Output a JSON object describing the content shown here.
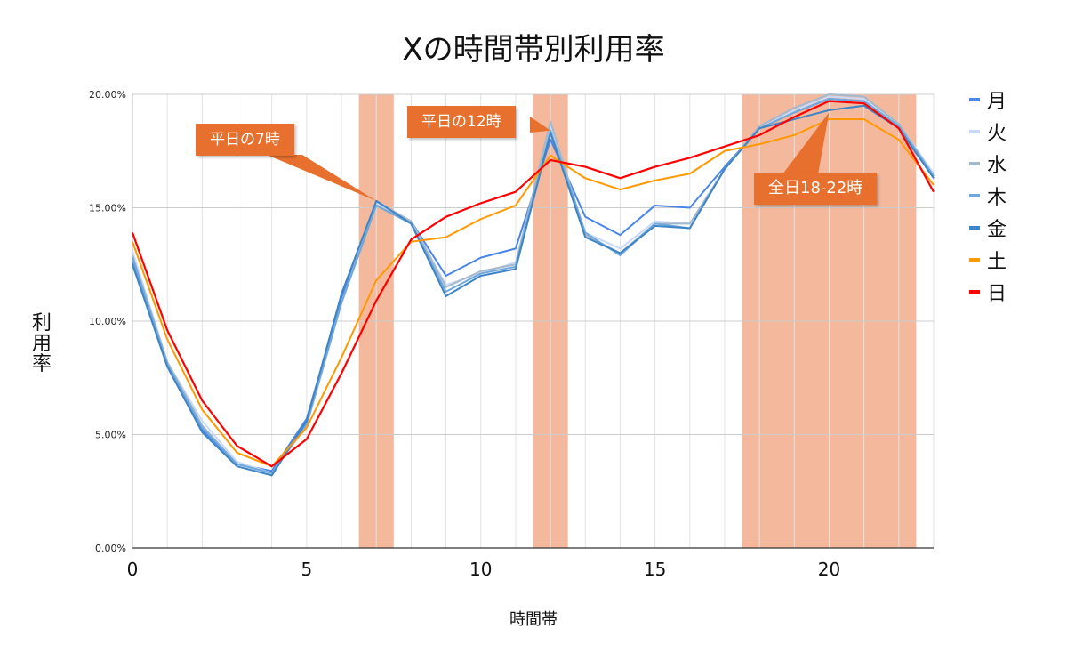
{
  "chart_data": {
    "type": "line",
    "title": "Xの時間帯別利用率",
    "xlabel": "時間帯",
    "ylabel": "利用率",
    "xlim": [
      0,
      23
    ],
    "ylim": [
      0,
      0.2
    ],
    "x_ticks": [
      "0",
      "5",
      "10",
      "15",
      "20"
    ],
    "y_ticks": [
      "0.00%",
      "5.00%",
      "10.00%",
      "15.00%",
      "20.00%"
    ],
    "x": [
      0,
      1,
      2,
      3,
      4,
      5,
      6,
      7,
      8,
      9,
      10,
      11,
      12,
      13,
      14,
      15,
      16,
      17,
      18,
      19,
      20,
      21,
      22,
      23
    ],
    "grid": true,
    "legend_position": "right",
    "series": [
      {
        "name": "月",
        "color": "#4a86e8",
        "values": [
          0.126,
          0.08,
          0.052,
          0.037,
          0.034,
          0.057,
          0.11,
          0.152,
          0.144,
          0.12,
          0.128,
          0.132,
          0.18,
          0.146,
          0.138,
          0.151,
          0.15,
          0.168,
          0.185,
          0.192,
          0.198,
          0.197,
          0.186,
          0.165
        ]
      },
      {
        "name": "火",
        "color": "#c9daf8",
        "values": [
          0.131,
          0.082,
          0.056,
          0.038,
          0.033,
          0.054,
          0.108,
          0.152,
          0.144,
          0.116,
          0.121,
          0.126,
          0.186,
          0.139,
          0.132,
          0.144,
          0.143,
          0.167,
          0.185,
          0.193,
          0.199,
          0.198,
          0.187,
          0.165
        ]
      },
      {
        "name": "水",
        "color": "#a4b8cb",
        "values": [
          0.129,
          0.082,
          0.054,
          0.037,
          0.033,
          0.054,
          0.108,
          0.153,
          0.144,
          0.115,
          0.122,
          0.125,
          0.188,
          0.138,
          0.13,
          0.143,
          0.143,
          0.167,
          0.186,
          0.194,
          0.2,
          0.199,
          0.187,
          0.164
        ]
      },
      {
        "name": "木",
        "color": "#6fa8dc",
        "values": [
          0.128,
          0.081,
          0.053,
          0.037,
          0.033,
          0.055,
          0.108,
          0.151,
          0.143,
          0.113,
          0.121,
          0.124,
          0.184,
          0.139,
          0.129,
          0.143,
          0.141,
          0.167,
          0.185,
          0.192,
          0.198,
          0.197,
          0.186,
          0.164
        ]
      },
      {
        "name": "金",
        "color": "#3d85c6",
        "values": [
          0.125,
          0.08,
          0.051,
          0.036,
          0.032,
          0.056,
          0.112,
          0.153,
          0.143,
          0.111,
          0.12,
          0.123,
          0.183,
          0.137,
          0.13,
          0.142,
          0.141,
          0.167,
          0.185,
          0.189,
          0.193,
          0.195,
          0.185,
          0.163
        ]
      },
      {
        "name": "土",
        "color": "#ff9900",
        "values": [
          0.135,
          0.092,
          0.061,
          0.042,
          0.036,
          0.053,
          0.084,
          0.118,
          0.135,
          0.137,
          0.145,
          0.151,
          0.173,
          0.163,
          0.158,
          0.162,
          0.165,
          0.175,
          0.178,
          0.182,
          0.189,
          0.189,
          0.18,
          0.16
        ]
      },
      {
        "name": "日",
        "color": "#ff0000",
        "values": [
          0.139,
          0.096,
          0.065,
          0.045,
          0.036,
          0.048,
          0.077,
          0.109,
          0.136,
          0.146,
          0.152,
          0.157,
          0.171,
          0.168,
          0.163,
          0.168,
          0.172,
          0.177,
          0.182,
          0.19,
          0.197,
          0.196,
          0.185,
          0.157
        ]
      }
    ],
    "highlights": [
      {
        "from": 6.5,
        "to": 7.5
      },
      {
        "from": 11.5,
        "to": 12.5
      },
      {
        "from": 17.5,
        "to": 22.5
      }
    ],
    "annotations": [
      {
        "text": "平日の7時",
        "target_x": 7
      },
      {
        "text": "平日の12時",
        "target_x": 12
      },
      {
        "text": "全日18-22時",
        "target_x": 20
      }
    ]
  }
}
